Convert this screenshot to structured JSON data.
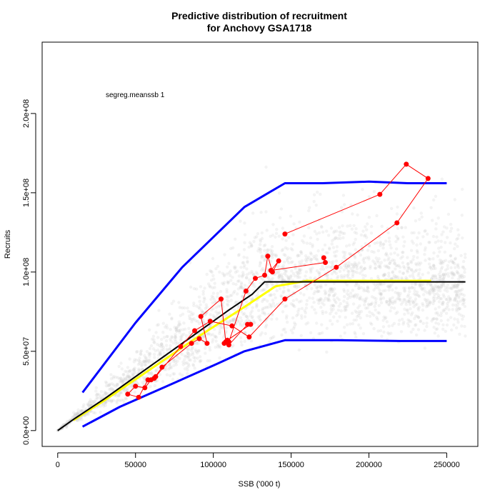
{
  "chart_data": {
    "type": "scatter",
    "title_line1": "Predictive distribution of recruitment",
    "title_line2": "for Anchovy GSA1718",
    "xlabel": "SSB ('000 t)",
    "ylabel": "Recruits",
    "annotation": "segreg.meanssb 1",
    "xlim": [
      -10000,
      270000
    ],
    "ylim": [
      -10000000,
      245000000
    ],
    "x_ticks": [
      0,
      50000,
      100000,
      150000,
      200000,
      250000
    ],
    "x_tick_labels": [
      "0",
      "50000",
      "100000",
      "150000",
      "200000",
      "250000"
    ],
    "y_ticks": [
      0,
      50000000,
      100000000,
      150000000,
      200000000
    ],
    "y_tick_labels": [
      "0.0e+00",
      "5.0e+07",
      "1.0e+08",
      "1.5e+08",
      "2.0e+08"
    ],
    "grid": false,
    "colors": {
      "observed": "#ff0000",
      "median": "#000000",
      "yellow_fit": "#ffff00",
      "bounds": "#0000ff",
      "cloud": "#c8c8c8"
    },
    "median_line": {
      "x": [
        0,
        10000,
        30000,
        50000,
        70000,
        90000,
        110000,
        125000,
        133000,
        150000,
        200000,
        250000,
        262000
      ],
      "y": [
        0,
        7000000,
        20000000,
        34000000,
        48000000,
        62000000,
        76000000,
        86000000,
        93800000,
        93800000,
        93800000,
        93800000,
        93800000
      ]
    },
    "yellow_line": {
      "x": [
        10000,
        30000,
        60000,
        90000,
        120000,
        140000,
        160000,
        200000,
        240000
      ],
      "y": [
        6500000,
        19000000,
        39000000,
        59000000,
        78000000,
        91000000,
        94500000,
        94500000,
        94500000
      ]
    },
    "upper_bound": {
      "x": [
        16000,
        50000,
        80000,
        120000,
        146000,
        170000,
        200000,
        225000,
        250000
      ],
      "y": [
        24000000,
        68000000,
        103000000,
        141000000,
        156000000,
        156000000,
        157000000,
        156000000,
        156000000
      ]
    },
    "lower_bound": {
      "x": [
        16000,
        40000,
        70000,
        100000,
        120000,
        146000,
        180000,
        220000,
        250000
      ],
      "y": [
        2500000,
        15000000,
        28000000,
        41000000,
        50000000,
        57000000,
        57000000,
        56500000,
        56500000
      ]
    },
    "observed": {
      "x": [
        146000,
        207000,
        224000,
        238000,
        218000,
        179000,
        146000,
        123000,
        112000,
        98000,
        88000,
        79000,
        63000,
        58000,
        52000,
        45000,
        50000,
        56000,
        60000,
        62000,
        67000,
        86000,
        91000,
        96000,
        92000,
        105000,
        108000,
        110000,
        122000,
        124000,
        109000,
        107000,
        110000,
        121000,
        127000,
        133000,
        135000,
        138000,
        142000,
        137000,
        172000,
        171000
      ],
      "y": [
        124000000,
        149000000,
        168000000,
        159000000,
        131000000,
        103000000,
        83000000,
        59000000,
        66000000,
        69000000,
        63000000,
        53000000,
        34000000,
        32000000,
        21000000,
        23000000,
        28000000,
        27000000,
        32000000,
        33000000,
        40000000,
        55000000,
        58000000,
        55000000,
        72000000,
        83000000,
        56000000,
        54000000,
        67000000,
        67000000,
        57000000,
        55000000,
        56000000,
        88000000,
        96000000,
        98000000,
        110000000,
        100000000,
        107000000,
        101000000,
        106000000,
        109000000
      ]
    }
  }
}
